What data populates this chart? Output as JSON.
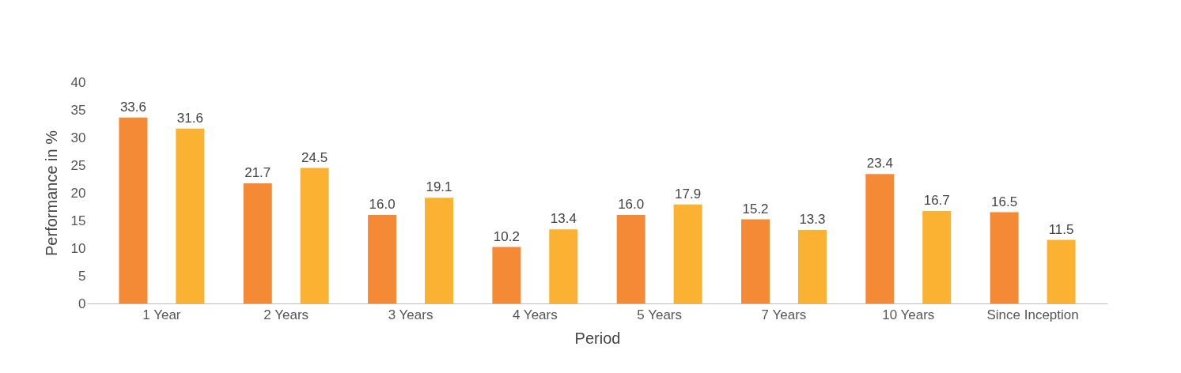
{
  "chart_data": {
    "type": "bar",
    "xlabel": "Period",
    "ylabel": "Performance in %",
    "categories": [
      "1 Year",
      "2 Years",
      "3 Years",
      "4 Years",
      "5 Years",
      "7 Years",
      "10 Years",
      "Since Inception"
    ],
    "series": [
      {
        "color": "#f58a36",
        "values": [
          33.6,
          21.7,
          16.0,
          10.2,
          16.0,
          15.2,
          23.4,
          16.5
        ],
        "value_labels": [
          "33.6",
          "21.7",
          "16.0",
          "10.2",
          "16.0",
          "15.2",
          "23.4",
          "16.5"
        ]
      },
      {
        "color": "#fbb131",
        "values": [
          31.6,
          24.5,
          19.1,
          13.4,
          17.9,
          13.3,
          16.7,
          11.5
        ],
        "value_labels": [
          "31.6",
          "24.5",
          "19.1",
          "13.4",
          "17.9",
          "13.3",
          "16.7",
          "11.5"
        ]
      }
    ],
    "ylim": [
      0,
      40
    ],
    "yticks": [
      0,
      5,
      10,
      15,
      20,
      25,
      30,
      35,
      40
    ],
    "grid": false
  }
}
